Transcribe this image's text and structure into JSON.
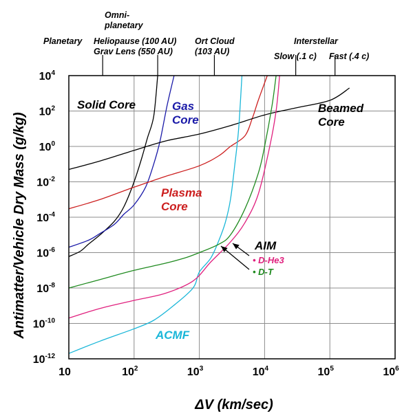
{
  "chart_data": {
    "type": "line",
    "title": "",
    "xlabel_symbol": "Δ",
    "xlabel_rest": "V (km/sec)",
    "ylabel": "Antimatter/Vehicle Dry Mass (g/kg)",
    "x_scale": "log",
    "y_scale": "log",
    "xlim": [
      10,
      1000000
    ],
    "ylim": [
      1e-12,
      10000
    ],
    "grid": true,
    "x_ticks": [
      {
        "base": "10",
        "exp": ""
      },
      {
        "base": "10",
        "exp": "2"
      },
      {
        "base": "10",
        "exp": "3"
      },
      {
        "base": "10",
        "exp": "4"
      },
      {
        "base": "10",
        "exp": "5"
      },
      {
        "base": "10",
        "exp": "6"
      }
    ],
    "y_ticks": [
      {
        "base": "10",
        "exp": "-12"
      },
      {
        "base": "10",
        "exp": "-10"
      },
      {
        "base": "10",
        "exp": "-8"
      },
      {
        "base": "10",
        "exp": "-6"
      },
      {
        "base": "10",
        "exp": "-4"
      },
      {
        "base": "10",
        "exp": "-2"
      },
      {
        "base": "10",
        "exp": "0"
      },
      {
        "base": "10",
        "exp": "2"
      },
      {
        "base": "10",
        "exp": "4"
      }
    ],
    "top_markers": [
      {
        "x": 33,
        "lines": [
          "Planetary"
        ]
      },
      {
        "x": 95,
        "lines": [
          "Omni-",
          "planetary"
        ]
      },
      {
        "x": 120,
        "lines": [
          "Heliopause (100 AU)",
          "Grav Lens (550 AU)"
        ]
      },
      {
        "x": 1700,
        "lines": [
          "Ort Cloud",
          "(103 AU)"
        ]
      },
      {
        "x": 30000,
        "lines": [
          "Interstellar"
        ]
      },
      {
        "x": 30000,
        "lines": [
          "Slow (.1 c)"
        ]
      },
      {
        "x": 120000,
        "lines": [
          "Fast (.4 c)"
        ]
      }
    ],
    "top_tick_x": [
      33,
      230,
      1700,
      30000,
      120000
    ],
    "series": [
      {
        "key": "solid",
        "name": "Solid Core",
        "color": "#000000",
        "points": [
          [
            10,
            6e-07
          ],
          [
            15,
            1.2e-06
          ],
          [
            20,
            3e-06
          ],
          [
            30,
            1e-05
          ],
          [
            50,
            6e-05
          ],
          [
            70,
            0.0004
          ],
          [
            100,
            0.01
          ],
          [
            130,
            0.2
          ],
          [
            160,
            3
          ],
          [
            200,
            50
          ],
          [
            230,
            10000.0
          ]
        ]
      },
      {
        "key": "gas",
        "name": "Gas Core",
        "color": "#1a1aa8",
        "points": [
          [
            10,
            2e-06
          ],
          [
            20,
            5e-06
          ],
          [
            30,
            1.2e-05
          ],
          [
            50,
            4e-05
          ],
          [
            70,
            0.00015
          ],
          [
            100,
            0.0005
          ],
          [
            150,
            0.005
          ],
          [
            200,
            0.1
          ],
          [
            250,
            2
          ],
          [
            320,
            200
          ],
          [
            410,
            10000.0
          ]
        ]
      },
      {
        "key": "plasma",
        "name": "Plasma Core",
        "color": "#cc1f1f",
        "points": [
          [
            10,
            0.0003
          ],
          [
            30,
            0.001
          ],
          [
            100,
            0.005
          ],
          [
            300,
            0.02
          ],
          [
            1000,
            0.08
          ],
          [
            2000,
            0.3
          ],
          [
            3000,
            1
          ],
          [
            5000,
            4
          ],
          [
            6500,
            40
          ],
          [
            8000,
            400
          ],
          [
            11000,
            10000.0
          ]
        ]
      },
      {
        "key": "beamed",
        "name": "Beamed Core",
        "color": "#000000",
        "points": [
          [
            10,
            0.05
          ],
          [
            30,
            0.15
          ],
          [
            100,
            0.6
          ],
          [
            300,
            2
          ],
          [
            1000,
            5
          ],
          [
            3000,
            15
          ],
          [
            10000,
            60
          ],
          [
            30000,
            150
          ],
          [
            100000,
            400
          ],
          [
            200000,
            2000
          ]
        ]
      },
      {
        "key": "acmf",
        "name": "ACMF",
        "color": "#19b6d8",
        "points": [
          [
            10,
            2e-12
          ],
          [
            30,
            1e-11
          ],
          [
            100,
            5e-11
          ],
          [
            200,
            1.5e-10
          ],
          [
            400,
            1e-09
          ],
          [
            800,
            1e-08
          ],
          [
            1000,
            8e-08
          ],
          [
            1500,
            5e-07
          ],
          [
            2000,
            5e-06
          ],
          [
            2500,
            5e-05
          ],
          [
            3000,
            0.001
          ],
          [
            3500,
            0.1
          ],
          [
            4000,
            10
          ],
          [
            4500,
            10000.0
          ]
        ]
      },
      {
        "key": "dhe3",
        "name": "D-He3",
        "color": "#e0207e",
        "points": [
          [
            10,
            2e-10
          ],
          [
            30,
            7e-10
          ],
          [
            100,
            2e-09
          ],
          [
            300,
            5e-09
          ],
          [
            800,
            2.5e-08
          ],
          [
            1500,
            3e-07
          ],
          [
            3000,
            4e-06
          ],
          [
            5000,
            5e-05
          ],
          [
            8000,
            0.002
          ],
          [
            12000,
            1
          ],
          [
            15000,
            100
          ],
          [
            17000,
            10000.0
          ]
        ]
      },
      {
        "key": "dt",
        "name": "D-T",
        "color": "#1f8a1f",
        "points": [
          [
            10,
            1e-08
          ],
          [
            30,
            3e-08
          ],
          [
            100,
            1e-07
          ],
          [
            300,
            2.5e-07
          ],
          [
            600,
            5e-07
          ],
          [
            1000,
            1e-06
          ],
          [
            2000,
            3e-06
          ],
          [
            3000,
            1e-05
          ],
          [
            5000,
            0.0003
          ],
          [
            8000,
            0.03
          ],
          [
            10000,
            1
          ],
          [
            13000,
            200
          ],
          [
            15000,
            10000.0
          ]
        ]
      }
    ],
    "labels": [
      {
        "key": "solid",
        "text": [
          "Solid Core"
        ],
        "color": "#000000"
      },
      {
        "key": "gas",
        "text": [
          "Gas",
          "Core"
        ],
        "color": "#1a1aa8"
      },
      {
        "key": "plasma",
        "text": [
          "Plasma",
          "Core"
        ],
        "color": "#cc1f1f"
      },
      {
        "key": "beamed",
        "text": [
          "Beamed",
          "Core"
        ],
        "color": "#000000"
      },
      {
        "key": "acmf",
        "text": [
          "ACMF"
        ],
        "color": "#19b6d8"
      },
      {
        "key": "aim",
        "text": [
          "AIM"
        ],
        "color": "#000000"
      },
      {
        "key": "dhe3",
        "text": [
          "• D-He3"
        ],
        "color": "#e0207e"
      },
      {
        "key": "dt",
        "text": [
          "• D-T"
        ],
        "color": "#1f8a1f"
      }
    ]
  }
}
